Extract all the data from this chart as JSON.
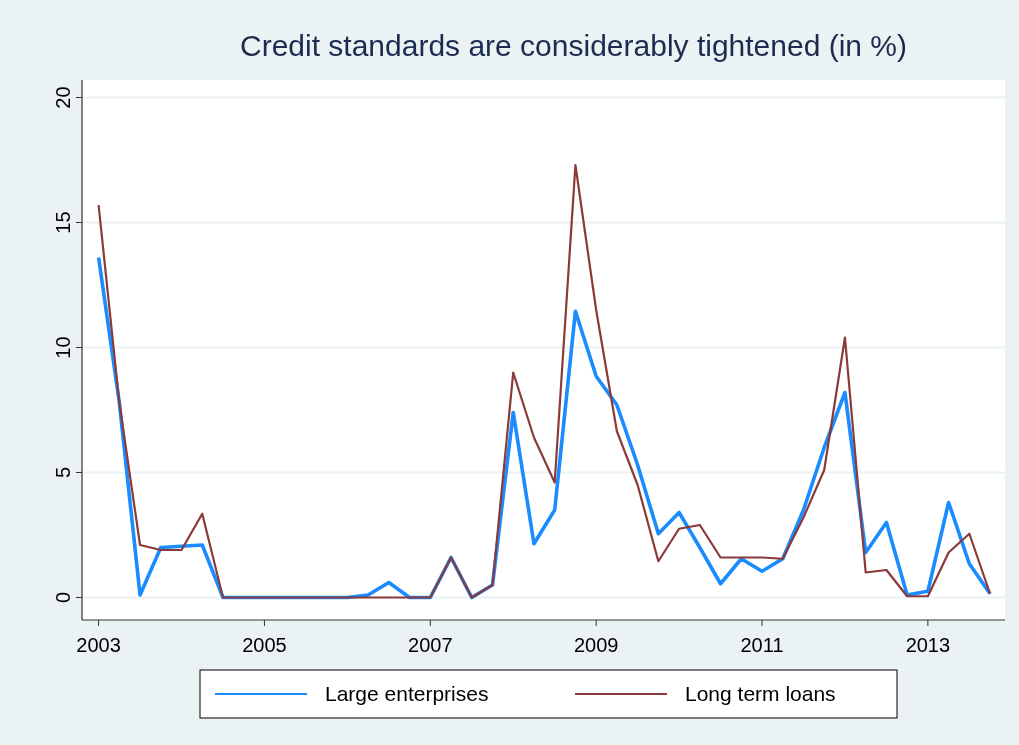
{
  "chart_data": {
    "type": "line",
    "title": "Credit standards are considerably tightened (in %)",
    "x": [
      2003,
      2003.25,
      2003.5,
      2003.75,
      2004,
      2004.25,
      2004.5,
      2004.75,
      2005,
      2005.25,
      2005.5,
      2005.75,
      2006,
      2006.25,
      2006.5,
      2006.75,
      2007,
      2007.25,
      2007.5,
      2007.75,
      2008,
      2008.25,
      2008.5,
      2008.75,
      2009,
      2009.25,
      2009.5,
      2009.75,
      2010,
      2010.25,
      2010.5,
      2010.75,
      2011,
      2011.25,
      2011.5,
      2011.75,
      2012,
      2012.25,
      2012.5,
      2012.75,
      2013,
      2013.25,
      2013.5,
      2013.75
    ],
    "series": [
      {
        "name": "Large enterprises",
        "color": "#1a8cff",
        "values": [
          13.6,
          7.8,
          0.1,
          2.0,
          2.05,
          2.1,
          0,
          0,
          0,
          0,
          0,
          0,
          0,
          0.1,
          0.6,
          0,
          0,
          1.6,
          0,
          0.5,
          7.4,
          2.15,
          3.5,
          11.45,
          8.85,
          7.7,
          5.3,
          2.55,
          3.4,
          2.0,
          0.55,
          1.55,
          1.05,
          1.55,
          3.5,
          6.0,
          8.2,
          1.8,
          3.0,
          0.1,
          0.25,
          3.8,
          1.35,
          0.15
        ]
      },
      {
        "name": "Long term loans",
        "color": "#8b3a3a",
        "values": [
          15.7,
          7.8,
          2.1,
          1.9,
          1.9,
          3.35,
          0,
          0,
          0,
          0,
          0,
          0,
          0,
          0,
          0,
          0,
          0,
          1.6,
          0,
          0.5,
          9.0,
          6.4,
          4.6,
          17.3,
          11.5,
          6.65,
          4.5,
          1.45,
          2.75,
          2.9,
          1.6,
          1.6,
          1.6,
          1.55,
          3.2,
          5.1,
          10.4,
          1.0,
          1.1,
          0.05,
          0.05,
          1.8,
          2.55,
          0.15
        ]
      }
    ],
    "xlim": [
      2002.8,
      2013.93
    ],
    "xticks": [
      2003,
      2005,
      2007,
      2009,
      2011,
      2013
    ],
    "ylim": [
      -0.9,
      20.7
    ],
    "yticks": [
      0,
      5,
      10,
      15,
      20
    ],
    "grid": "y",
    "legend": "bottom",
    "line_style": "solid",
    "marker": "none"
  }
}
